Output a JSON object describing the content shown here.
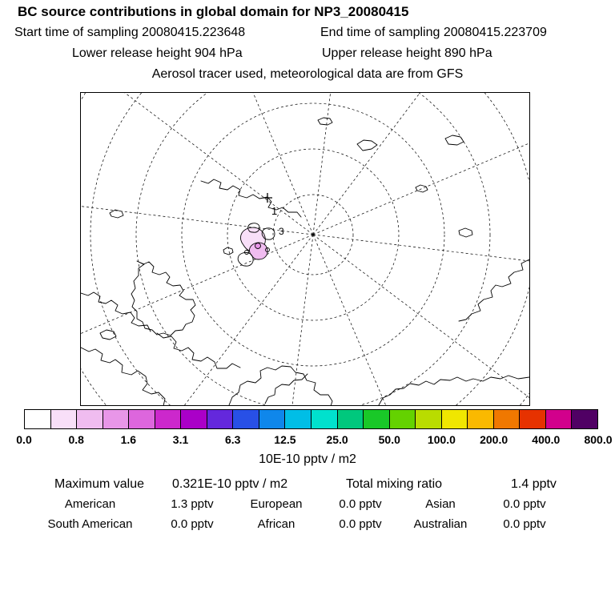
{
  "header": {
    "title": "BC  source contributions in global domain for NP3_20080415",
    "start_time": "Start time of sampling 20080415.223648",
    "end_time": "End time of sampling 20080415.223709",
    "lower_release": "Lower release height  904 hPa",
    "upper_release": "Upper release height  890 hPa",
    "tracer_line": "Aerosol tracer used, meteorological data are from GFS"
  },
  "map": {
    "station_label": "1",
    "contour_label": "3"
  },
  "colorbar": {
    "tick_labels": [
      "0.0",
      "0.8",
      "1.6",
      "3.1",
      "6.3",
      "12.5",
      "25.0",
      "50.0",
      "100.0",
      "200.0",
      "400.0",
      "800.0"
    ],
    "unit_label": "10E-10 pptv / m2",
    "segment_colors": [
      "#ffffff",
      "#f8dff8",
      "#f0bcf0",
      "#e896e8",
      "#dd66dd",
      "#cc28cc",
      "#aa00c8",
      "#6428dc",
      "#2850e6",
      "#0f87eb",
      "#00bee6",
      "#00e1cd",
      "#00c87d",
      "#19c828",
      "#64d200",
      "#b9dc00",
      "#f0e600",
      "#fab900",
      "#f07800",
      "#e63200",
      "#d2008c",
      "#500064"
    ]
  },
  "stats": {
    "maximum_label": "Maximum value",
    "maximum_value": "0.321E-10 pptv / m2",
    "total_label": "Total mixing ratio",
    "total_value": "1.4 pptv",
    "sources": [
      {
        "name": "American",
        "value": "1.3 pptv"
      },
      {
        "name": "European",
        "value": "0.0 pptv"
      },
      {
        "name": "Asian",
        "value": "0.0 pptv"
      },
      {
        "name": "South American",
        "value": "0.0 pptv"
      },
      {
        "name": "African",
        "value": "0.0 pptv"
      },
      {
        "name": "Australian",
        "value": "0.0 pptv"
      }
    ]
  },
  "chart_data": {
    "type": "heatmap",
    "title": "BC source contributions in global domain for NP3_20080415",
    "projection": "north-polar stereographic map with dashed graticule",
    "colorbar": {
      "ticks": [
        0.0,
        0.8,
        1.6,
        3.1,
        6.3,
        12.5,
        25.0,
        50.0,
        100.0,
        200.0,
        400.0,
        800.0
      ],
      "unit": "10E-10 pptv / m2",
      "scale": "doubling (log2) intervals"
    },
    "receptor_marker": {
      "label": "1"
    },
    "secondary_marker": {
      "label": "3"
    },
    "maximum_value": "0.321E-10 pptv / m2",
    "total_mixing_ratio": "1.4 pptv",
    "source_contributions": [
      {
        "region": "American",
        "value_pptv": 1.3
      },
      {
        "region": "European",
        "value_pptv": 0.0
      },
      {
        "region": "Asian",
        "value_pptv": 0.0
      },
      {
        "region": "South American",
        "value_pptv": 0.0
      },
      {
        "region": "African",
        "value_pptv": 0.0
      },
      {
        "region": "Australian",
        "value_pptv": 0.0
      }
    ]
  }
}
